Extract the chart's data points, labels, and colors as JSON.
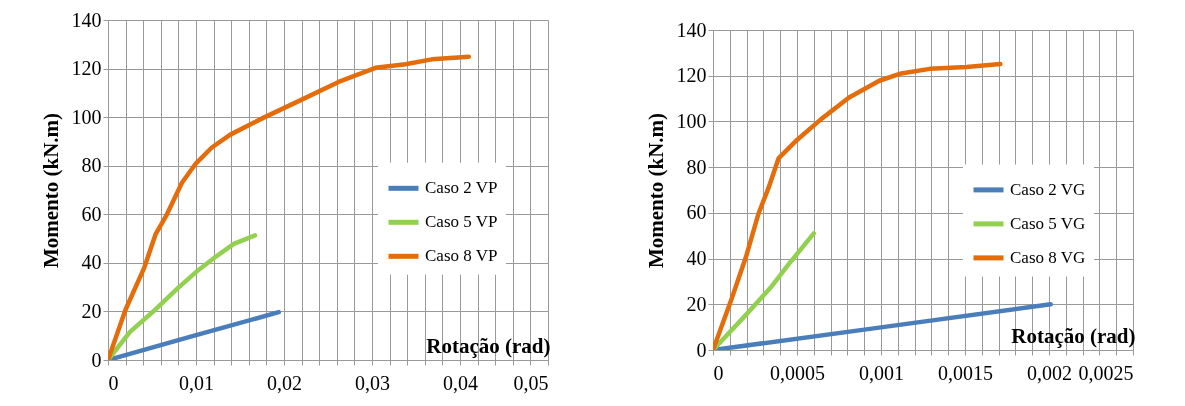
{
  "chart_data": [
    {
      "type": "line",
      "xlabel": "Rotação (rad)",
      "ylabel": "Momento (kN.m)",
      "xlim": [
        0,
        0.05
      ],
      "xticks": [
        0,
        {
          "value": 0.002,
          "label": null
        },
        {
          "value": 0.004,
          "label": null
        },
        {
          "value": 0.006,
          "label": null
        },
        {
          "value": 0.008,
          "label": null
        },
        {
          "value": 0.01,
          "label": "0,01"
        },
        {
          "value": 0.012,
          "label": null
        },
        {
          "value": 0.014,
          "label": null
        },
        {
          "value": 0.016,
          "label": null
        },
        {
          "value": 0.018,
          "label": null
        },
        {
          "value": 0.02,
          "label": "0,02"
        },
        {
          "value": 0.022,
          "label": null
        },
        {
          "value": 0.024,
          "label": null
        },
        {
          "value": 0.026,
          "label": null
        },
        {
          "value": 0.028,
          "label": null
        },
        {
          "value": 0.03,
          "label": "0,03"
        },
        {
          "value": 0.032,
          "label": null
        },
        {
          "value": 0.034,
          "label": null
        },
        {
          "value": 0.036,
          "label": null
        },
        {
          "value": 0.038,
          "label": null
        },
        {
          "value": 0.04,
          "label": "0,04"
        },
        {
          "value": 0.042,
          "label": null
        },
        {
          "value": 0.044,
          "label": null
        },
        {
          "value": 0.046,
          "label": null
        },
        {
          "value": 0.048,
          "label": null
        },
        {
          "value": 0.05,
          "label": "0,05"
        }
      ],
      "ylim": [
        0,
        140
      ],
      "yticks": [
        0,
        20,
        40,
        60,
        80,
        100,
        120,
        140
      ],
      "grid": true,
      "legend": "right",
      "series": [
        {
          "name": "Caso 2 VP",
          "color": "#4a7ebb",
          "x": [
            0,
            0.0097,
            0.0194
          ],
          "values": [
            0,
            9.9,
            19.7
          ]
        },
        {
          "name": "Caso 5 VP",
          "color": "#92d050",
          "x": [
            0,
            0.0025,
            0.0054,
            0.008,
            0.01,
            0.0122,
            0.0143,
            0.0167
          ],
          "values": [
            0,
            11.6,
            20.8,
            29.8,
            36.2,
            42.4,
            47.8,
            51.3
          ]
        },
        {
          "name": "Caso 8 VP",
          "color": "#e46c0a",
          "x": [
            0,
            0.002,
            0.0041,
            0.0054,
            0.0067,
            0.0084,
            0.01,
            0.0118,
            0.0139,
            0.0177,
            0.0219,
            0.0262,
            0.0304,
            0.0338,
            0.0368,
            0.041
          ],
          "values": [
            0,
            20.8,
            37.8,
            51.7,
            60,
            73,
            81,
            87.5,
            92.8,
            99.8,
            107,
            114.5,
            120.3,
            121.8,
            123.8,
            124.9
          ]
        }
      ]
    },
    {
      "type": "line",
      "xlabel": "Rotação (rad)",
      "ylabel": "Momento (kN.m)",
      "xlim": [
        0,
        0.0025
      ],
      "xticks": [
        0,
        {
          "value": 0.0001,
          "label": null
        },
        {
          "value": 0.0002,
          "label": null
        },
        {
          "value": 0.0003,
          "label": null
        },
        {
          "value": 0.0004,
          "label": null
        },
        {
          "value": 0.0005,
          "label": "0,0005"
        },
        {
          "value": 0.0006,
          "label": null
        },
        {
          "value": 0.0007,
          "label": null
        },
        {
          "value": 0.0008,
          "label": null
        },
        {
          "value": 0.0009,
          "label": null
        },
        {
          "value": 0.001,
          "label": "0,001"
        },
        {
          "value": 0.0011,
          "label": null
        },
        {
          "value": 0.0012,
          "label": null
        },
        {
          "value": 0.0013,
          "label": null
        },
        {
          "value": 0.0014,
          "label": null
        },
        {
          "value": 0.0015,
          "label": "0,0015"
        },
        {
          "value": 0.0016,
          "label": null
        },
        {
          "value": 0.0017,
          "label": null
        },
        {
          "value": 0.0018,
          "label": null
        },
        {
          "value": 0.0019,
          "label": null
        },
        {
          "value": 0.002,
          "label": "0,002"
        },
        {
          "value": 0.0021,
          "label": null
        },
        {
          "value": 0.0022,
          "label": null
        },
        {
          "value": 0.0023,
          "label": null
        },
        {
          "value": 0.0024,
          "label": null
        },
        {
          "value": 0.0025,
          "label": "0,0025"
        }
      ],
      "ylim": [
        0,
        140
      ],
      "yticks": [
        0,
        20,
        40,
        60,
        80,
        100,
        120,
        140
      ],
      "grid": true,
      "legend": "right",
      "series": [
        {
          "name": "Caso 2 VG",
          "color": "#4a7ebb",
          "x": [
            0,
            0.001,
            0.00201
          ],
          "values": [
            0,
            9.9,
            20
          ]
        },
        {
          "name": "Caso 5 VG",
          "color": "#92d050",
          "x": [
            0,
            0.0002,
            0.00035,
            0.00046,
            0.0006
          ],
          "values": [
            0,
            15.7,
            27.9,
            38.4,
            51
          ]
        },
        {
          "name": "Caso 8 VG",
          "color": "#e46c0a",
          "x": [
            0,
            0.00011,
            0.0002,
            0.00027,
            0.00033,
            0.00039,
            0.0005,
            0.00064,
            0.00081,
            0.00099,
            0.00112,
            0.00129,
            0.00151,
            0.00171
          ],
          "values": [
            0,
            22.2,
            41.6,
            59.5,
            70.8,
            83.8,
            91.9,
            100.8,
            110.5,
            117.8,
            121,
            123,
            123.8,
            125.1
          ]
        }
      ]
    }
  ]
}
